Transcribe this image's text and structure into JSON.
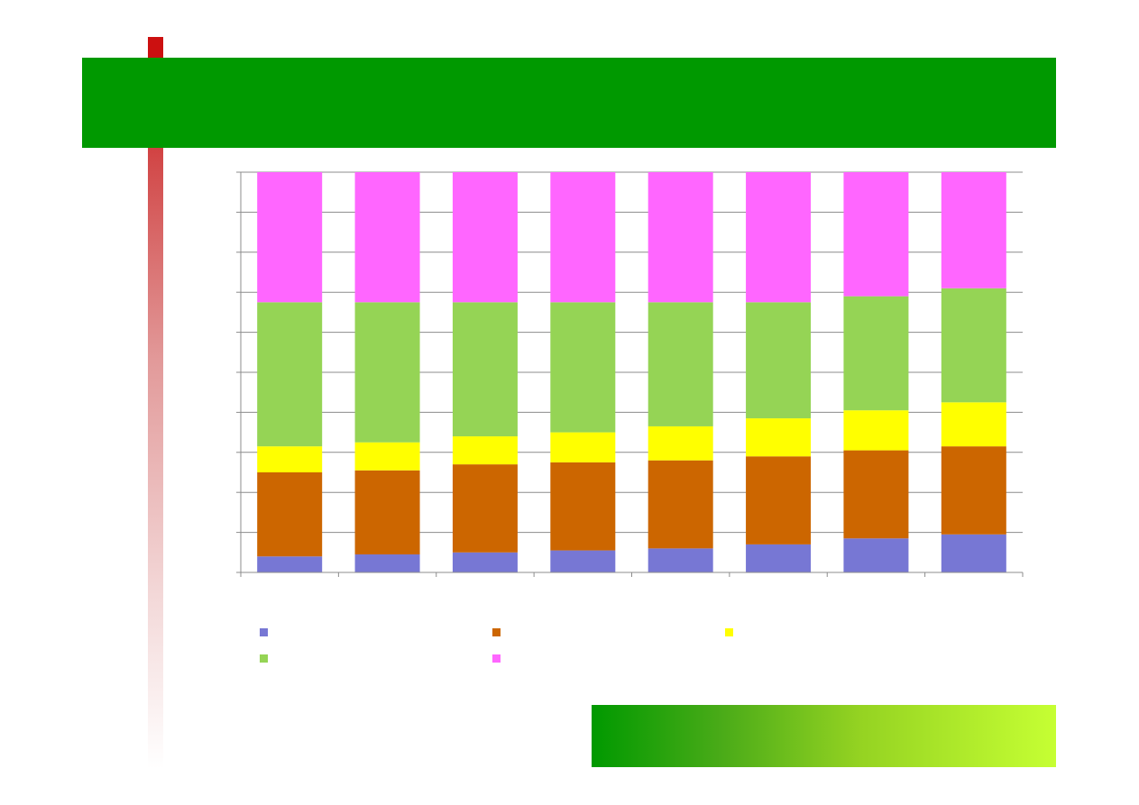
{
  "header": {
    "title": ""
  },
  "colors": {
    "header_bg": "#009900",
    "accent_stripe": "#cc1010",
    "footer_gradient_start": "#009900",
    "footer_gradient_end": "#c6ff33",
    "gridline": "#8c8c8c"
  },
  "chart_data": {
    "type": "bar",
    "stacked": true,
    "percent": true,
    "title": "",
    "xlabel": "",
    "ylabel": "",
    "ylim": [
      0,
      100
    ],
    "grid": true,
    "legend_position": "bottom",
    "categories": [
      "",
      "",
      "",
      "",
      "",
      "",
      "",
      ""
    ],
    "series": [
      {
        "name": "",
        "color": "#7777d4",
        "values": [
          4.0,
          4.5,
          5.0,
          5.5,
          6.0,
          7.0,
          8.5,
          9.5
        ]
      },
      {
        "name": "",
        "color": "#cc6600",
        "values": [
          21.0,
          21.0,
          22.0,
          22.0,
          22.0,
          22.0,
          22.0,
          22.0
        ]
      },
      {
        "name": "",
        "color": "#ffff00",
        "values": [
          6.5,
          7.0,
          7.0,
          7.5,
          8.5,
          9.5,
          10.0,
          11.0
        ]
      },
      {
        "name": "",
        "color": "#95d455",
        "values": [
          36.0,
          35.0,
          33.5,
          32.5,
          31.0,
          29.0,
          28.5,
          28.5
        ]
      },
      {
        "name": "",
        "color": "#ff66ff",
        "values": [
          32.5,
          32.5,
          32.5,
          32.5,
          32.5,
          32.5,
          31.0,
          29.0
        ]
      }
    ]
  }
}
